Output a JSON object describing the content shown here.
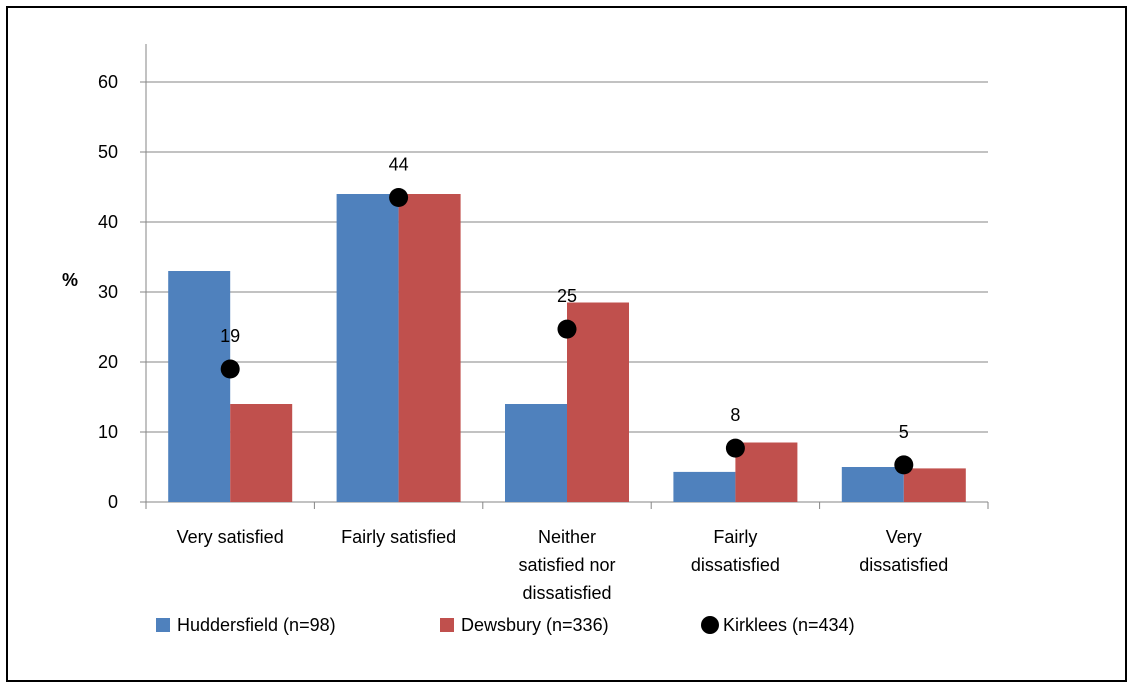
{
  "chart_data": {
    "type": "bar",
    "title": "",
    "xlabel": "",
    "ylabel": "%",
    "ylim": [
      0,
      60
    ],
    "yticks": [
      0,
      10,
      20,
      30,
      40,
      50,
      60
    ],
    "grid": true,
    "legend_position": "bottom",
    "categories": [
      [
        "Very satisfied"
      ],
      [
        "Fairly satisfied"
      ],
      [
        "Neither",
        "satisfied nor",
        "dissatisfied"
      ],
      [
        "Fairly",
        "dissatisfied"
      ],
      [
        "Very",
        "dissatisfied"
      ]
    ],
    "series": [
      {
        "name": "Huddersfield (n=98)",
        "type": "bar",
        "color": "#4f81bd",
        "values": [
          33,
          44,
          14,
          4.3,
          5
        ]
      },
      {
        "name": "Dewsbury (n=336)",
        "type": "bar",
        "color": "#c0504d",
        "values": [
          14,
          44,
          28.5,
          8.5,
          4.8
        ]
      },
      {
        "name": "Kirklees (n=434)",
        "type": "marker",
        "color": "#000000",
        "values": [
          19,
          43.5,
          24.7,
          7.7,
          5.3
        ],
        "labels": [
          "19",
          "44",
          "25",
          "8",
          "5"
        ]
      }
    ]
  }
}
